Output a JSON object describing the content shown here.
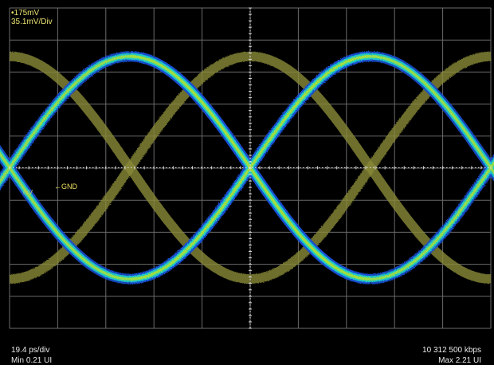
{
  "chart_data": {
    "type": "eye-diagram",
    "title": "",
    "xlabel": "",
    "ylabel": "",
    "vertical": {
      "top_label": "•175mV",
      "scale_label": "35.1mV/Div",
      "top_mV": 175,
      "mV_per_div": 35.1,
      "divisions": 10
    },
    "horizontal": {
      "timebase_label": "19.4 ps/div",
      "ps_per_div": 19.4,
      "divisions": 10,
      "min_label": "Min 0.21 UI",
      "max_label": "Max 2.21 UI",
      "min_UI": 0.21,
      "max_UI": 2.21
    },
    "bit_rate_label": "10 312 500 kbps",
    "ground_marker": {
      "label": "←GND",
      "unit_label": "mV",
      "level_mV": 0
    },
    "eye": {
      "high_level_mV": 122,
      "low_level_mV": -122,
      "crossings_UI": [
        0.21,
        1.21,
        2.21
      ],
      "secondary_crossings_UI": [
        0.71,
        1.71
      ]
    },
    "grid": true,
    "colors": {
      "background": "#000000",
      "grid": "#6b6b6b",
      "trace_outer": "#1a4fd0",
      "trace_mid": "#20c8c8",
      "trace_core": "#9ee040",
      "trace_hot": "#f0d030",
      "trace_peak": "#e02a10",
      "secondary_trace": "#8a8a3a",
      "label_yellow": "#e8e070",
      "label_white": "#e8e8e8"
    }
  }
}
